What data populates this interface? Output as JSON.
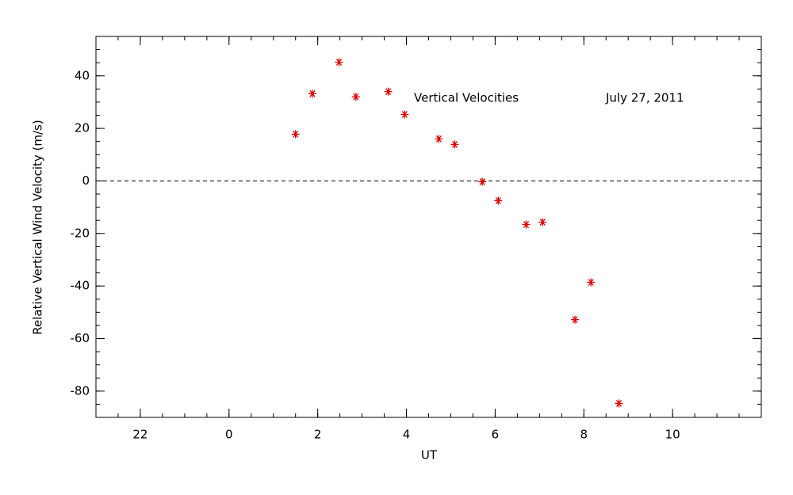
{
  "chart_data": {
    "type": "scatter",
    "annotations": [
      "Vertical Velocities",
      "July 27, 2011"
    ],
    "xlabel": "UT",
    "ylabel": "Relative Vertical Wind Velocity (m/s)",
    "series": [
      {
        "color": "#e00000",
        "marker": "asterisk",
        "x": [
          1.5,
          1.88,
          2.48,
          2.86,
          3.59,
          3.96,
          4.73,
          5.09,
          5.71,
          6.07,
          6.7,
          7.07,
          7.8,
          8.16,
          8.79
        ],
        "values": [
          17.8,
          33.2,
          45.2,
          32,
          34,
          25.3,
          16,
          13.9,
          -0.3,
          -7.5,
          -16.6,
          -15.7,
          -52.8,
          -38.6,
          -84.7
        ]
      }
    ],
    "xlim": [
      -3,
      12
    ],
    "xticks": [
      {
        "value": -2,
        "label": "22"
      },
      0,
      2,
      4,
      6,
      8,
      10
    ],
    "xminor": 0.5,
    "ylim": [
      -90,
      55
    ],
    "yticks": [
      -80,
      -60,
      -40,
      -20,
      0,
      20,
      40
    ],
    "yminor": 5,
    "reference_line": 0
  }
}
